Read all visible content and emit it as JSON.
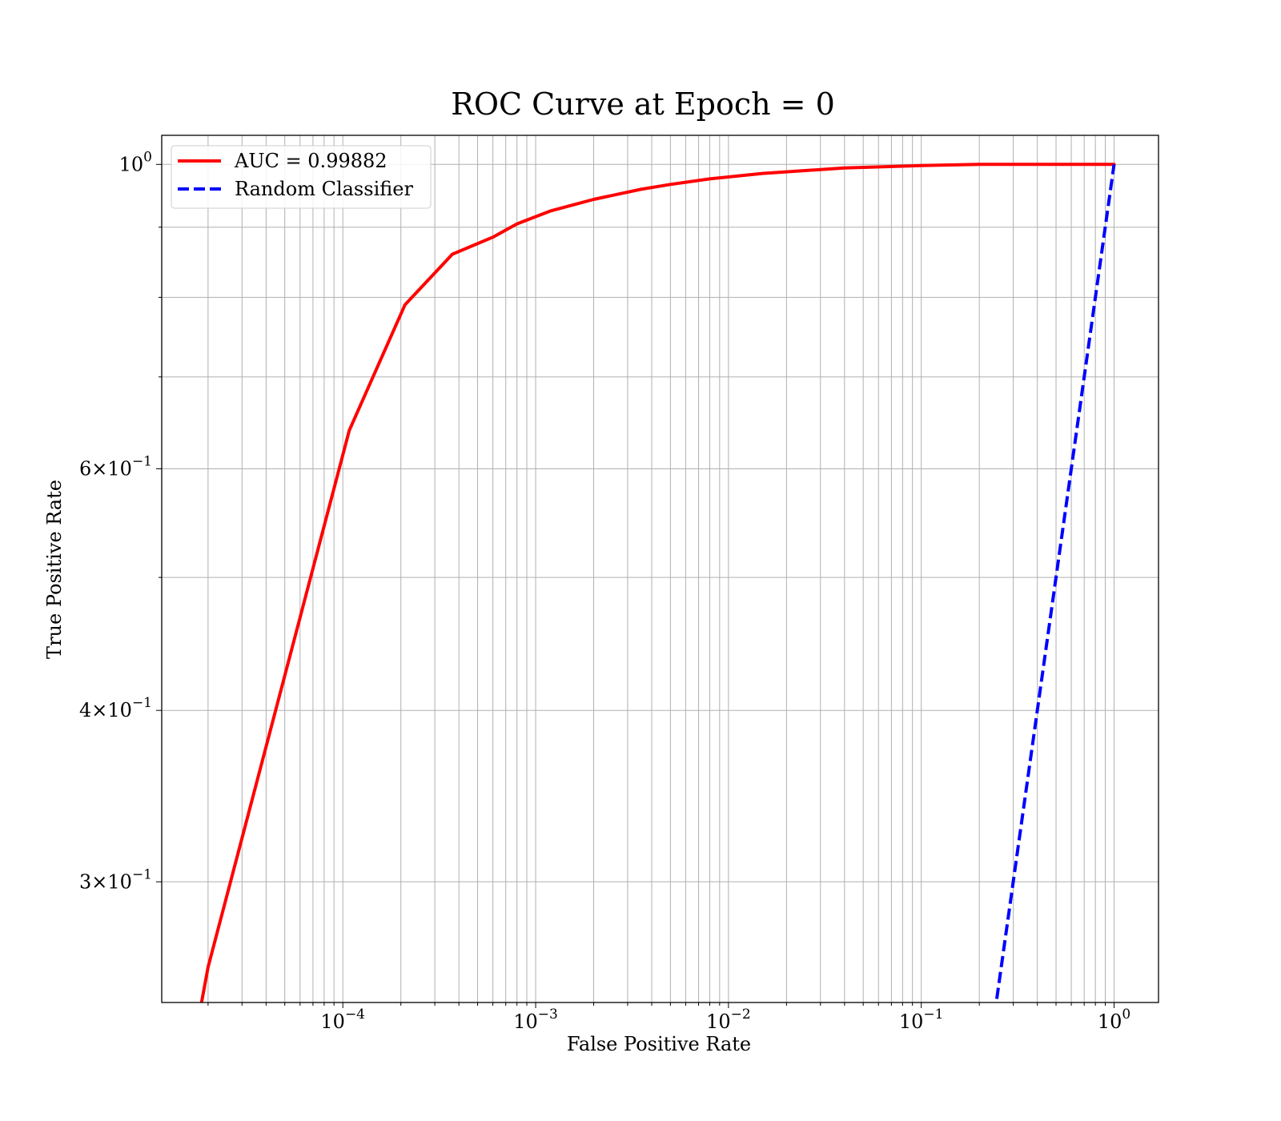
{
  "chart_data": {
    "type": "line",
    "title": "ROC Curve at Epoch = 0",
    "xlabel": "False Positive Rate",
    "ylabel": "True Positive Rate",
    "xscale": "log",
    "yscale": "log",
    "xlim": [
      1.15e-05,
      1.7
    ],
    "ylim": [
      0.245,
      1.05
    ],
    "grid": true,
    "legend_position": "top-left",
    "x_ticks": [
      {
        "value": 0.0001,
        "base": "10",
        "exp": "−4"
      },
      {
        "value": 0.001,
        "base": "10",
        "exp": "−3"
      },
      {
        "value": 0.01,
        "base": "10",
        "exp": "−2"
      },
      {
        "value": 0.1,
        "base": "10",
        "exp": "−1"
      },
      {
        "value": 1,
        "base": "10",
        "exp": "0"
      }
    ],
    "y_ticks": [
      {
        "value": 1,
        "mant": "",
        "base": "10",
        "exp": "0"
      },
      {
        "value": 0.6,
        "mant": "6×",
        "base": "10",
        "exp": "−1"
      },
      {
        "value": 0.4,
        "mant": "4×",
        "base": "10",
        "exp": "−1"
      },
      {
        "value": 0.3,
        "mant": "3×",
        "base": "10",
        "exp": "−1"
      }
    ],
    "y_minor_ticks": [
      0.5,
      0.7,
      0.8,
      0.9
    ],
    "series": [
      {
        "name": "AUC = 0.99882",
        "color": "#ff0000",
        "style": "solid",
        "x": [
          1.8e-05,
          2e-05,
          0.000108,
          0.00021,
          0.00037,
          0.0006,
          0.0008,
          0.0012,
          0.002,
          0.0035,
          0.005,
          0.008,
          0.015,
          0.04,
          0.1,
          0.2,
          0.5,
          1.0
        ],
        "y": [
          0.24,
          0.26,
          0.64,
          0.79,
          0.86,
          0.885,
          0.905,
          0.925,
          0.943,
          0.959,
          0.967,
          0.976,
          0.985,
          0.994,
          0.998,
          1.0,
          1.0,
          1.0
        ]
      },
      {
        "name": "Random Classifier",
        "color": "#0000ff",
        "style": "dashed",
        "x": [
          0.24,
          1.0
        ],
        "y": [
          0.24,
          1.0
        ]
      }
    ]
  }
}
